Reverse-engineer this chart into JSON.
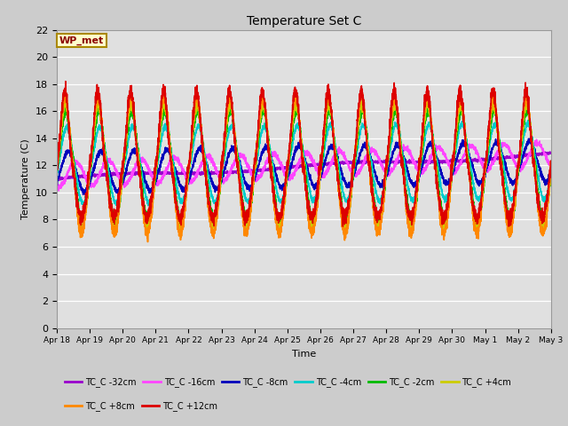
{
  "title": "Temperature Set C",
  "xlabel": "Time",
  "ylabel": "Temperature (C)",
  "ylim": [
    0,
    22
  ],
  "yticks": [
    0,
    2,
    4,
    6,
    8,
    10,
    12,
    14,
    16,
    18,
    20,
    22
  ],
  "fig_bg": "#d8d8d8",
  "plot_bg": "#e0e0e0",
  "legend_label": "WP_met",
  "series": [
    {
      "label": "TC_C -32cm",
      "color": "#9900cc"
    },
    {
      "label": "TC_C -16cm",
      "color": "#ff44ff"
    },
    {
      "label": "TC_C -8cm",
      "color": "#0000bb"
    },
    {
      "label": "TC_C -4cm",
      "color": "#00cccc"
    },
    {
      "label": "TC_C -2cm",
      "color": "#00bb00"
    },
    {
      "label": "TC_C +4cm",
      "color": "#cccc00"
    },
    {
      "label": "TC_C +8cm",
      "color": "#ff8800"
    },
    {
      "label": "TC_C +12cm",
      "color": "#dd0000"
    }
  ],
  "n_days": 15
}
